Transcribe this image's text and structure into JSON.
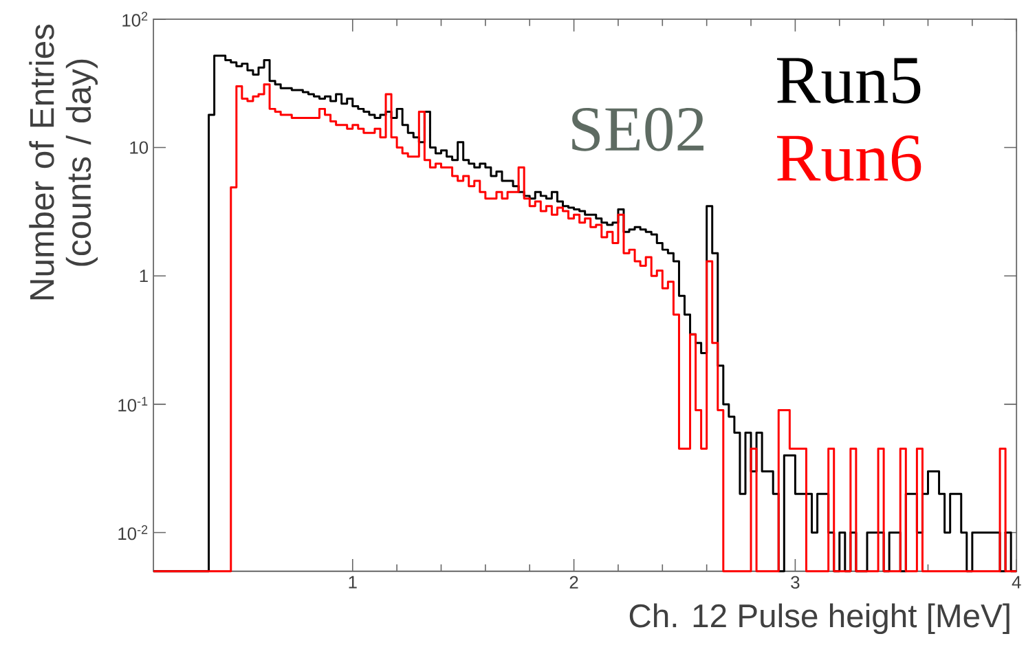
{
  "chart_data": {
    "type": "histogram",
    "xlabel": "Ch. 12 Pulse height [MeV]",
    "ylabel": "Number of Entries (counts / day)",
    "annotations": [
      "SE02"
    ],
    "log": "y",
    "legend": "top right",
    "xlim": [
      0.1,
      4
    ],
    "xticks": [
      1,
      2,
      3,
      4
    ],
    "ylim": [
      0.005,
      100
    ],
    "yticks": [
      {
        "value": 0.01,
        "label": "10$^{-2}$"
      },
      {
        "value": 0.1,
        "label": "10$^{-1}$"
      },
      1,
      10,
      {
        "value": 100,
        "label": "10$^{2}$"
      }
    ],
    "bins": [
      0.1,
      0.125,
      0.15,
      0.175,
      0.2,
      0.225,
      0.25,
      0.275,
      0.3,
      0.325,
      0.35,
      0.375,
      0.4,
      0.425,
      0.45,
      0.475,
      0.5,
      0.525,
      0.55,
      0.575,
      0.6,
      0.625,
      0.65,
      0.675,
      0.7,
      0.725,
      0.75,
      0.775,
      0.8,
      0.825,
      0.85,
      0.875,
      0.9,
      0.925,
      0.95,
      0.975,
      1.0,
      1.025,
      1.05,
      1.075,
      1.1,
      1.125,
      1.15,
      1.175,
      1.2,
      1.225,
      1.25,
      1.275,
      1.3,
      1.325,
      1.35,
      1.375,
      1.4,
      1.425,
      1.45,
      1.475,
      1.5,
      1.525,
      1.55,
      1.575,
      1.6,
      1.625,
      1.65,
      1.675,
      1.7,
      1.725,
      1.75,
      1.775,
      1.8,
      1.825,
      1.85,
      1.875,
      1.9,
      1.925,
      1.95,
      1.975,
      2.0,
      2.025,
      2.05,
      2.075,
      2.1,
      2.125,
      2.15,
      2.175,
      2.2,
      2.225,
      2.25,
      2.275,
      2.3,
      2.325,
      2.35,
      2.375,
      2.4,
      2.425,
      2.45,
      2.475,
      2.5,
      2.525,
      2.55,
      2.575,
      2.6,
      2.625,
      2.65,
      2.675,
      2.7,
      2.725,
      2.75,
      2.775,
      2.8,
      2.825,
      2.85,
      2.875,
      2.9,
      2.925,
      2.95,
      2.975,
      3.0,
      3.025,
      3.05,
      3.075,
      3.1,
      3.125,
      3.15,
      3.175,
      3.2,
      3.225,
      3.25,
      3.275,
      3.3,
      3.325,
      3.35,
      3.375,
      3.4,
      3.425,
      3.45,
      3.475,
      3.5,
      3.525,
      3.55,
      3.575,
      3.6,
      3.625,
      3.65,
      3.675,
      3.7,
      3.725,
      3.75,
      3.775,
      3.8,
      3.825,
      3.85,
      3.875,
      3.9,
      3.925,
      3.95,
      3.975,
      4.0
    ],
    "series": [
      {
        "name": "Run5",
        "color": "#000000",
        "values": [
          null,
          null,
          null,
          null,
          null,
          null,
          null,
          null,
          null,
          null,
          18,
          52,
          52,
          48,
          46,
          43,
          45,
          40,
          37,
          42,
          48,
          33,
          31,
          29,
          29,
          28,
          28,
          27,
          26,
          25,
          24,
          25,
          23,
          26,
          22,
          24,
          21,
          20,
          19,
          18,
          17,
          18,
          19,
          17,
          20,
          15,
          13,
          12,
          11,
          19,
          10,
          9,
          9.5,
          8.5,
          8,
          11,
          8,
          7.5,
          7,
          7.5,
          7,
          6,
          6.5,
          5.5,
          5.5,
          5,
          4.5,
          4.2,
          4,
          4.5,
          4.2,
          4,
          4.5,
          3.8,
          3.5,
          3.4,
          3.3,
          3.2,
          3,
          3,
          2.8,
          2.6,
          2.5,
          2.6,
          3.3,
          2.2,
          2.3,
          2.4,
          2.3,
          2.2,
          2.1,
          1.8,
          1.6,
          1.5,
          1.3,
          0.7,
          0.5,
          0.35,
          0.3,
          0.25,
          3.5,
          1.5,
          0.2,
          0.1,
          0.08,
          0.06,
          0.02,
          0.06,
          0.03,
          0.06,
          0.03,
          0.03,
          0.02,
          null,
          0.04,
          0.04,
          0.02,
          0.02,
          0.02,
          0.01,
          0.02,
          0.02,
          0.01,
          null,
          0.01,
          null,
          0.01,
          null,
          null,
          0.01,
          0.01,
          0.01,
          null,
          0.01,
          0.01,
          null,
          0.02,
          0.02,
          0.01,
          0.02,
          0.03,
          0.03,
          0.02,
          0.01,
          0.02,
          0.02,
          0.01,
          null,
          0.01,
          0.01,
          0.01,
          0.01,
          0.01,
          null,
          0.01,
          null
        ]
      },
      {
        "name": "Run6",
        "color": "#ff0000",
        "values": [
          null,
          null,
          null,
          null,
          null,
          null,
          null,
          null,
          null,
          null,
          null,
          null,
          null,
          null,
          4.9,
          30,
          24,
          23,
          25,
          26,
          31,
          20,
          19,
          18,
          18,
          17,
          17,
          17,
          17,
          17,
          20,
          18,
          16,
          15,
          15,
          14,
          15,
          14,
          13,
          13,
          14,
          12,
          26,
          12,
          10,
          9,
          8.5,
          8.5,
          19,
          8,
          7,
          7.5,
          7,
          7,
          6,
          5.5,
          6,
          5,
          5.5,
          4.5,
          4,
          4,
          4.5,
          4,
          4.5,
          4.5,
          7,
          4,
          3.5,
          3.8,
          3.2,
          3.5,
          3,
          3.4,
          3.2,
          2.8,
          3,
          2.6,
          2.8,
          2.4,
          2.5,
          2,
          2.2,
          1.8,
          3,
          1.5,
          1.6,
          1.3,
          1.2,
          1.4,
          1,
          1.1,
          0.8,
          0.9,
          0.5,
          0.045,
          0.045,
          0.35,
          0.09,
          0.045,
          1.3,
          0.3,
          0.09,
          null,
          null,
          null,
          null,
          null,
          0.045,
          null,
          null,
          null,
          null,
          0.09,
          0.09,
          0.045,
          0.045,
          0.045,
          null,
          null,
          null,
          null,
          0.045,
          null,
          null,
          null,
          0.045,
          null,
          null,
          null,
          null,
          0.045,
          null,
          null,
          null,
          0.045,
          null,
          null,
          0.045,
          null,
          null,
          null,
          null,
          null,
          null,
          null,
          null,
          null,
          null,
          null,
          null,
          null,
          null,
          0.045,
          null,
          null
        ]
      }
    ]
  }
}
